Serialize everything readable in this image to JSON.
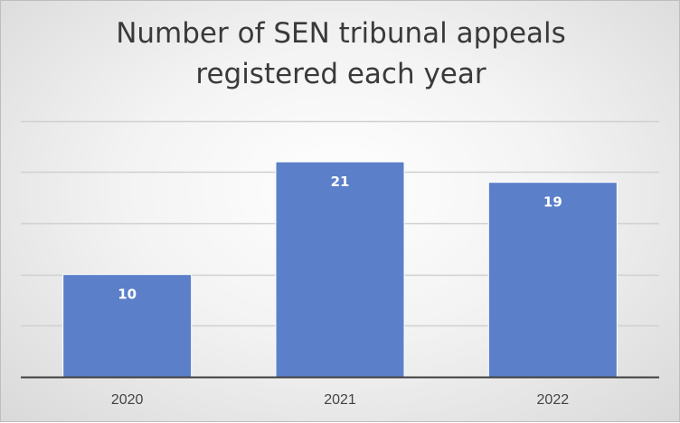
{
  "chart_data": {
    "type": "bar",
    "title_lines": [
      "Number of SEN tribunal appeals",
      "registered each year"
    ],
    "categories": [
      "2020",
      "2021",
      "2022"
    ],
    "values": [
      10,
      21,
      19
    ],
    "data_labels": [
      "10",
      "21",
      "19"
    ],
    "ylim": [
      0,
      25
    ],
    "grid": true,
    "legend": "none",
    "colors": {
      "bar": "#5b7fc9",
      "bar_border": "#ffffff",
      "grid": "#d0d0d0",
      "axis": "#404040"
    }
  }
}
